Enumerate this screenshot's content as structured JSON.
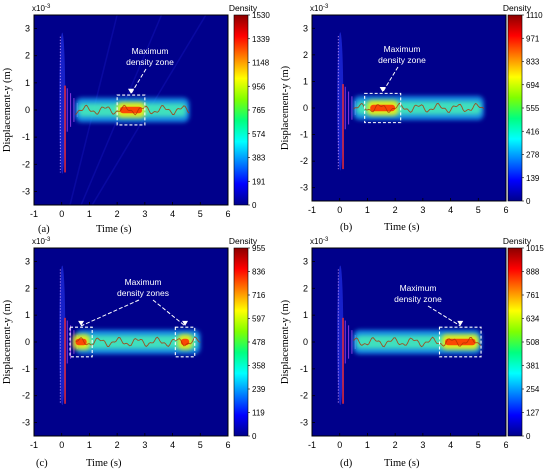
{
  "figure": {
    "colors": {
      "background": "#00008b",
      "frame": "#000000",
      "box": "#ffffff",
      "colormap": [
        "#00008b",
        "#0000ff",
        "#0080ff",
        "#00ffff",
        "#00ff80",
        "#80ff00",
        "#ffff00",
        "#ff8000",
        "#ff0000",
        "#8b0000"
      ]
    }
  },
  "chart_data": [
    {
      "type": "heatmap",
      "panel": "a",
      "caption": "(a)",
      "xlabel": "Time (s)",
      "ylabel": "Displacement-y (m)",
      "y_exponent": "x10",
      "y_exponent_power": "-3",
      "xlim": [
        -1,
        6
      ],
      "ylim": [
        -3.5,
        3.5
      ],
      "xticks": [
        "-1",
        "0",
        "1",
        "2",
        "3",
        "4",
        "5",
        "6"
      ],
      "yticks": [
        "3",
        "2",
        "1",
        "0",
        "-1",
        "-2",
        "-3"
      ],
      "colorbar_title": "Density",
      "colorbar_ticks": [
        "1530",
        "1339",
        "1148",
        "956",
        "765",
        "574",
        "383",
        "191",
        "0"
      ],
      "annotation": "Maximum density zone",
      "track_end": 4.6,
      "max_zone": [
        [
          2.0,
          3.0
        ]
      ],
      "peak_regions": [
        [
          2.0,
          3.0
        ]
      ]
    },
    {
      "type": "heatmap",
      "panel": "b",
      "caption": "(b)",
      "xlabel": "Time (s)",
      "ylabel": "Displacement-y (m)",
      "y_exponent": "x10",
      "y_exponent_power": "-3",
      "xlim": [
        -1,
        6
      ],
      "ylim": [
        -3.5,
        3.5
      ],
      "xticks": [
        "-1",
        "0",
        "1",
        "2",
        "3",
        "4",
        "5",
        "6"
      ],
      "yticks": [
        "3",
        "2",
        "1",
        "0",
        "-1",
        "-2",
        "-3"
      ],
      "colorbar_title": "Density",
      "colorbar_ticks": [
        "1110",
        "971",
        "833",
        "694",
        "555",
        "416",
        "278",
        "139",
        "0"
      ],
      "annotation": "Maximum density zone",
      "track_end": 5.2,
      "max_zone": [
        [
          0.9,
          2.2
        ]
      ],
      "peak_regions": [
        [
          1.0,
          2.1
        ]
      ]
    },
    {
      "type": "heatmap",
      "panel": "c",
      "caption": "(c)",
      "xlabel": "Time (s)",
      "ylabel": "Displacement-y (m)",
      "y_exponent": "x10",
      "y_exponent_power": "-3",
      "xlim": [
        -1,
        6
      ],
      "ylim": [
        -3.5,
        3.5
      ],
      "xticks": [
        "-1",
        "0",
        "1",
        "2",
        "3",
        "4",
        "5",
        "6"
      ],
      "yticks": [
        "3",
        "2",
        "1",
        "0",
        "-1",
        "-2",
        "-3"
      ],
      "colorbar_title": "Density",
      "colorbar_ticks": [
        "955",
        "836",
        "716",
        "597",
        "478",
        "358",
        "239",
        "119",
        "0"
      ],
      "annotation": "Maximum density zones",
      "track_end": 5.0,
      "max_zone": [
        [
          0.3,
          1.1
        ],
        [
          4.1,
          4.8
        ]
      ],
      "peak_regions": [
        [
          0.4,
          1.0
        ],
        [
          4.2,
          4.7
        ]
      ]
    },
    {
      "type": "heatmap",
      "panel": "d",
      "caption": "(d)",
      "xlabel": "Time (s)",
      "ylabel": "Displacement-y (m)",
      "y_exponent": "x10",
      "y_exponent_power": "-3",
      "xlim": [
        -1,
        6
      ],
      "ylim": [
        -3.5,
        3.5
      ],
      "xticks": [
        "-1",
        "0",
        "1",
        "2",
        "3",
        "4",
        "5",
        "6"
      ],
      "yticks": [
        "3",
        "2",
        "1",
        "0",
        "-1",
        "-2",
        "-3"
      ],
      "colorbar_title": "Density",
      "colorbar_ticks": [
        "1015",
        "888",
        "761",
        "634",
        "508",
        "381",
        "254",
        "127",
        "0"
      ],
      "annotation": "Maximum density zone",
      "track_end": 5.1,
      "max_zone": [
        [
          3.6,
          5.1
        ]
      ],
      "peak_regions": [
        [
          3.7,
          5.0
        ]
      ]
    }
  ]
}
